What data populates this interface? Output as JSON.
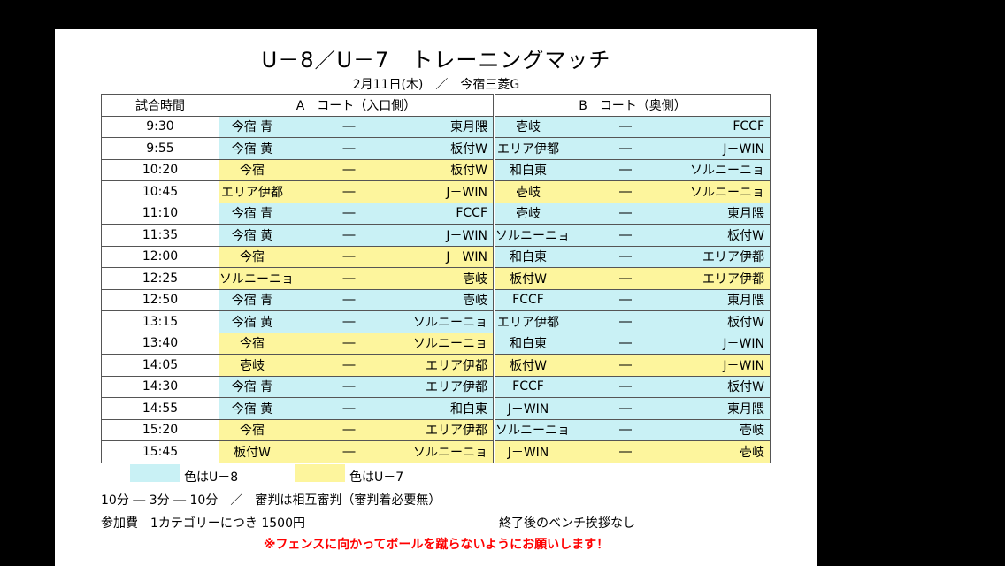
{
  "title": "U－8／U－7　トレーニングマッチ",
  "subtitle": "2月11日(木)　／　今宿三菱G",
  "headers": {
    "time": "試合時間",
    "courtA": "A　コート（入口側）",
    "courtB": "B　コート（奥側）"
  },
  "dash": "―",
  "colors": {
    "u8": "#c9f1f5",
    "u7": "#fdf59d"
  },
  "rows": [
    {
      "time": "9:30",
      "a": {
        "home": "今宿 青",
        "away": "東月隈",
        "cat": "u8"
      },
      "b": {
        "home": "壱岐",
        "away": "FCCF",
        "cat": "u8"
      }
    },
    {
      "time": "9:55",
      "a": {
        "home": "今宿 黄",
        "away": "板付W",
        "cat": "u8"
      },
      "b": {
        "home": "エリア伊都",
        "away": "J－WIN",
        "cat": "u8"
      }
    },
    {
      "time": "10:20",
      "a": {
        "home": "今宿",
        "away": "板付W",
        "cat": "u7"
      },
      "b": {
        "home": "和白東",
        "away": "ソルニーニョ",
        "cat": "u8"
      }
    },
    {
      "time": "10:45",
      "a": {
        "home": "エリア伊都",
        "away": "J－WIN",
        "cat": "u7"
      },
      "b": {
        "home": "壱岐",
        "away": "ソルニーニョ",
        "cat": "u7"
      }
    },
    {
      "time": "11:10",
      "a": {
        "home": "今宿 青",
        "away": "FCCF",
        "cat": "u8"
      },
      "b": {
        "home": "壱岐",
        "away": "東月隈",
        "cat": "u8"
      }
    },
    {
      "time": "11:35",
      "a": {
        "home": "今宿 黄",
        "away": "J－WIN",
        "cat": "u8"
      },
      "b": {
        "home": "ソルニーニョ",
        "away": "板付W",
        "cat": "u8"
      }
    },
    {
      "time": "12:00",
      "a": {
        "home": "今宿",
        "away": "J－WIN",
        "cat": "u7"
      },
      "b": {
        "home": "和白東",
        "away": "エリア伊都",
        "cat": "u8"
      }
    },
    {
      "time": "12:25",
      "a": {
        "home": "ソルニーニョ",
        "away": "壱岐",
        "cat": "u7"
      },
      "b": {
        "home": "板付W",
        "away": "エリア伊都",
        "cat": "u7"
      }
    },
    {
      "time": "12:50",
      "a": {
        "home": "今宿 青",
        "away": "壱岐",
        "cat": "u8"
      },
      "b": {
        "home": "FCCF",
        "away": "東月隈",
        "cat": "u8"
      }
    },
    {
      "time": "13:15",
      "a": {
        "home": "今宿 黄",
        "away": "ソルニーニョ",
        "cat": "u8"
      },
      "b": {
        "home": "エリア伊都",
        "away": "板付W",
        "cat": "u8"
      }
    },
    {
      "time": "13:40",
      "a": {
        "home": "今宿",
        "away": "ソルニーニョ",
        "cat": "u7"
      },
      "b": {
        "home": "和白東",
        "away": "J－WIN",
        "cat": "u8"
      }
    },
    {
      "time": "14:05",
      "a": {
        "home": "壱岐",
        "away": "エリア伊都",
        "cat": "u7"
      },
      "b": {
        "home": "板付W",
        "away": "J－WIN",
        "cat": "u7"
      }
    },
    {
      "time": "14:30",
      "a": {
        "home": "今宿 青",
        "away": "エリア伊都",
        "cat": "u8"
      },
      "b": {
        "home": "FCCF",
        "away": "板付W",
        "cat": "u8"
      }
    },
    {
      "time": "14:55",
      "a": {
        "home": "今宿 黄",
        "away": "和白東",
        "cat": "u8"
      },
      "b": {
        "home": "J－WIN",
        "away": "東月隈",
        "cat": "u8"
      }
    },
    {
      "time": "15:20",
      "a": {
        "home": "今宿",
        "away": "エリア伊都",
        "cat": "u7"
      },
      "b": {
        "home": "ソルニーニョ",
        "away": "壱岐",
        "cat": "u8"
      }
    },
    {
      "time": "15:45",
      "a": {
        "home": "板付W",
        "away": "ソルニーニョ",
        "cat": "u7"
      },
      "b": {
        "home": "J－WIN",
        "away": "壱岐",
        "cat": "u7"
      }
    }
  ],
  "legend": {
    "u8": "色はU－8",
    "u7": "色はU－7"
  },
  "notes": {
    "format": "10分 ― 3分 ― 10分　／　審判は相互審判（審判着必要無）",
    "fee": "参加費　1カテゴリーにつき 1500円",
    "bench": "終了後のベンチ挨拶なし",
    "warning": "※フェンスに向かってボールを蹴らないようにお願いします！"
  }
}
